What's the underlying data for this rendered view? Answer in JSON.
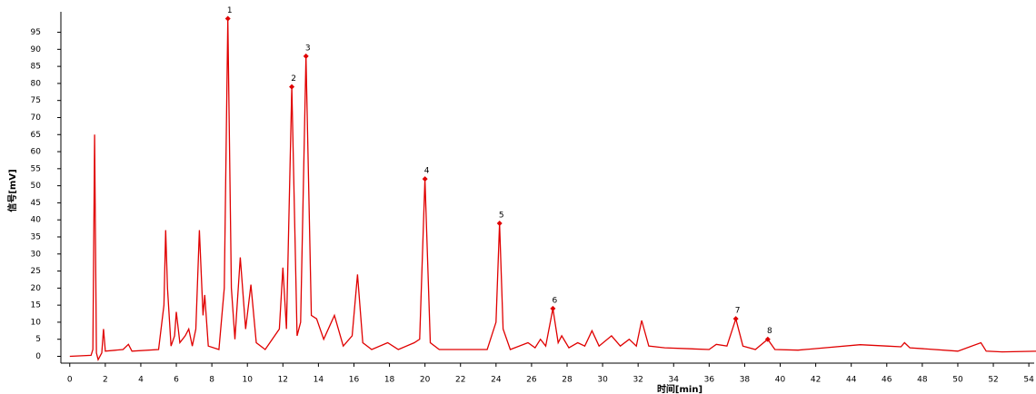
{
  "chart_data": {
    "type": "line",
    "xlabel": "时间[min]",
    "ylabel": "信号[mV]",
    "xlim": [
      -0.5,
      54.3
    ],
    "ylim": [
      -2,
      101
    ],
    "xticks": [
      0,
      2,
      4,
      6,
      8,
      10,
      12,
      14,
      16,
      18,
      20,
      22,
      24,
      26,
      28,
      30,
      32,
      34,
      36,
      38,
      40,
      42,
      44,
      46,
      48,
      50,
      52,
      54
    ],
    "yticks": [
      0,
      5,
      10,
      15,
      20,
      25,
      30,
      35,
      40,
      45,
      50,
      55,
      60,
      65,
      70,
      75,
      80,
      85,
      90,
      95
    ],
    "series": [
      {
        "color": "#e00000",
        "x": [
          0,
          1.2,
          1.3,
          1.4,
          1.5,
          1.6,
          1.8,
          1.9,
          2.0,
          3.0,
          3.3,
          3.5,
          5.0,
          5.3,
          5.4,
          5.5,
          5.7,
          5.9,
          6.0,
          6.2,
          6.5,
          6.7,
          6.9,
          7.1,
          7.3,
          7.5,
          7.6,
          7.8,
          8.4,
          8.7,
          8.9,
          9.1,
          9.3,
          9.6,
          9.9,
          10.2,
          10.5,
          11.0,
          11.8,
          12.0,
          12.2,
          12.5,
          12.8,
          13.0,
          13.3,
          13.6,
          13.9,
          14.3,
          14.9,
          15.4,
          15.9,
          16.2,
          16.5,
          17.0,
          17.9,
          18.5,
          19.4,
          19.7,
          20.0,
          20.3,
          20.8,
          23.5,
          24.0,
          24.2,
          24.4,
          24.8,
          25.8,
          26.2,
          26.5,
          26.8,
          27.2,
          27.5,
          27.7,
          28.1,
          28.6,
          29.0,
          29.4,
          29.8,
          30.5,
          31.0,
          31.5,
          31.9,
          32.2,
          32.6,
          33.5,
          36.0,
          36.4,
          37.0,
          37.5,
          37.9,
          38.6,
          39.3,
          39.7,
          41,
          44.5,
          46,
          46.8,
          47,
          47.3,
          50,
          51.3,
          51.6,
          52.5,
          54.5
        ],
        "values": [
          0,
          0.3,
          2,
          65,
          1,
          -1,
          1,
          8,
          1.5,
          2,
          3.5,
          1.5,
          2,
          15,
          37,
          20,
          3,
          6,
          13,
          4,
          6,
          8,
          3,
          8,
          37,
          12,
          18,
          3,
          2,
          20,
          99,
          20,
          5,
          29,
          8,
          21,
          4,
          2,
          8,
          26,
          8,
          79,
          6,
          10,
          88,
          12,
          11,
          5,
          12,
          3,
          6,
          24,
          4,
          2,
          4,
          2,
          4,
          5,
          52,
          4,
          2,
          2,
          10,
          39,
          8,
          2,
          4,
          2.5,
          5,
          3,
          14,
          4,
          6,
          2.5,
          4,
          3,
          7.5,
          3,
          6,
          3,
          5,
          3,
          10.5,
          3,
          2.5,
          2,
          3.5,
          3,
          11,
          3,
          2,
          5,
          2,
          1.8,
          3.4,
          3,
          2.8,
          4,
          2.5,
          1.5,
          4,
          1.5,
          1.3,
          1.5
        ]
      }
    ],
    "peaks": [
      {
        "label": "1",
        "x": 8.9,
        "y": 99
      },
      {
        "label": "2",
        "x": 12.5,
        "y": 79
      },
      {
        "label": "3",
        "x": 13.3,
        "y": 88
      },
      {
        "label": "4",
        "x": 20.0,
        "y": 52
      },
      {
        "label": "5",
        "x": 24.2,
        "y": 39
      },
      {
        "label": "6",
        "x": 27.2,
        "y": 14
      },
      {
        "label": "7",
        "x": 37.5,
        "y": 11
      },
      {
        "label": "8",
        "x": 39.3,
        "y": 5
      }
    ]
  }
}
